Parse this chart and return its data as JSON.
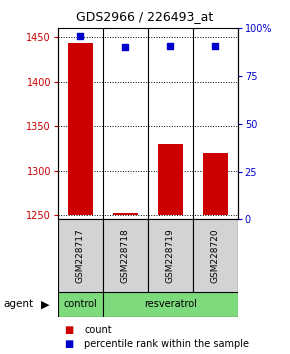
{
  "title": "GDS2966 / 226493_at",
  "samples": [
    "GSM228717",
    "GSM228718",
    "GSM228719",
    "GSM228720"
  ],
  "counts": [
    1443,
    1252,
    1330,
    1320
  ],
  "percentiles": [
    96,
    90,
    91,
    91
  ],
  "ylim_left": [
    1245,
    1460
  ],
  "ylim_right": [
    0,
    100
  ],
  "bar_color": "#cc0000",
  "dot_color": "#0000cc",
  "bar_bottom": 1250,
  "yticks_left": [
    1250,
    1300,
    1350,
    1400,
    1450
  ],
  "yticks_right": [
    0,
    25,
    50,
    75,
    100
  ],
  "box_fill": "#d3d3d3",
  "green_fill": "#7ddb7d",
  "agent_label": "agent"
}
